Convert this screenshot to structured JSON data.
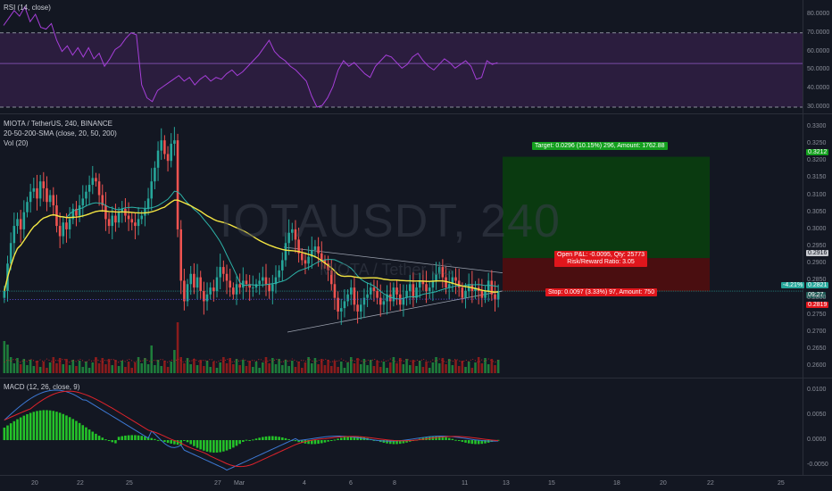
{
  "watermark": {
    "symbol": "IOTAUSDT, 240",
    "sub": "MIOTA / Tether US"
  },
  "rsi": {
    "title": "RSI (14, close)",
    "ticks": [
      "80.0000",
      "70.0000",
      "60.0000",
      "50.0000",
      "40.0000",
      "30.0000"
    ]
  },
  "main": {
    "title": "MIOTA / TetherUS, 240, BINANCE",
    "sma": "20-50-200-SMA (close, 20, 50, 200)",
    "vol": "Vol (20)",
    "ticks": [
      "0.3300",
      "0.3250",
      "0.3200",
      "0.3150",
      "0.3100",
      "0.3050",
      "0.3000",
      "0.2950",
      "0.2900",
      "0.2850",
      "0.2800",
      "0.2750",
      "0.2700",
      "0.2650",
      "0.2600"
    ]
  },
  "macd": {
    "title": "MACD (12, 26, close, 9)",
    "ticks": [
      "0.0100",
      "0.0050",
      "0.0000",
      "-0.0050"
    ]
  },
  "xaxis": {
    "labels": [
      "20",
      "22",
      "25",
      "27",
      "Mar",
      "4",
      "6",
      "8",
      "11",
      "13",
      "15",
      "18",
      "20",
      "22",
      "25"
    ]
  },
  "position": {
    "target_label": "Target: 0.0296 (10.15%) 296, Amount: 1762.88",
    "pnl_label": "Open P&L: -0.0095, Qty: 25773",
    "rr_label": "Risk/Reward Ratio: 3.05",
    "stop_label": "Stop: 0.0097 (3.33%) 97, Amount: 750"
  },
  "price_tags": {
    "target": "0.3212",
    "entry": "0.2916",
    "current": "0.2821",
    "countdown": "09:27",
    "stop": "0.2819",
    "change": "-4.21%"
  },
  "colors": {
    "bull": "#26a69a",
    "bear": "#ef5350",
    "sma20": "#2db3a8",
    "sma50": "#f5e642",
    "sma200": "#5a4bd6",
    "rsi": "#a63fd9",
    "rsi_band": "#2b1d3e",
    "macd_line": "#3d79d4",
    "signal_line": "#e0232b",
    "hist_pos": "#27d62a",
    "hist_neg": "#27d62a",
    "target_zone": "#0a3a10",
    "stop_zone": "#4a0e10",
    "target_tag": "#14a01e",
    "stop_tag": "#e0161c"
  }
}
